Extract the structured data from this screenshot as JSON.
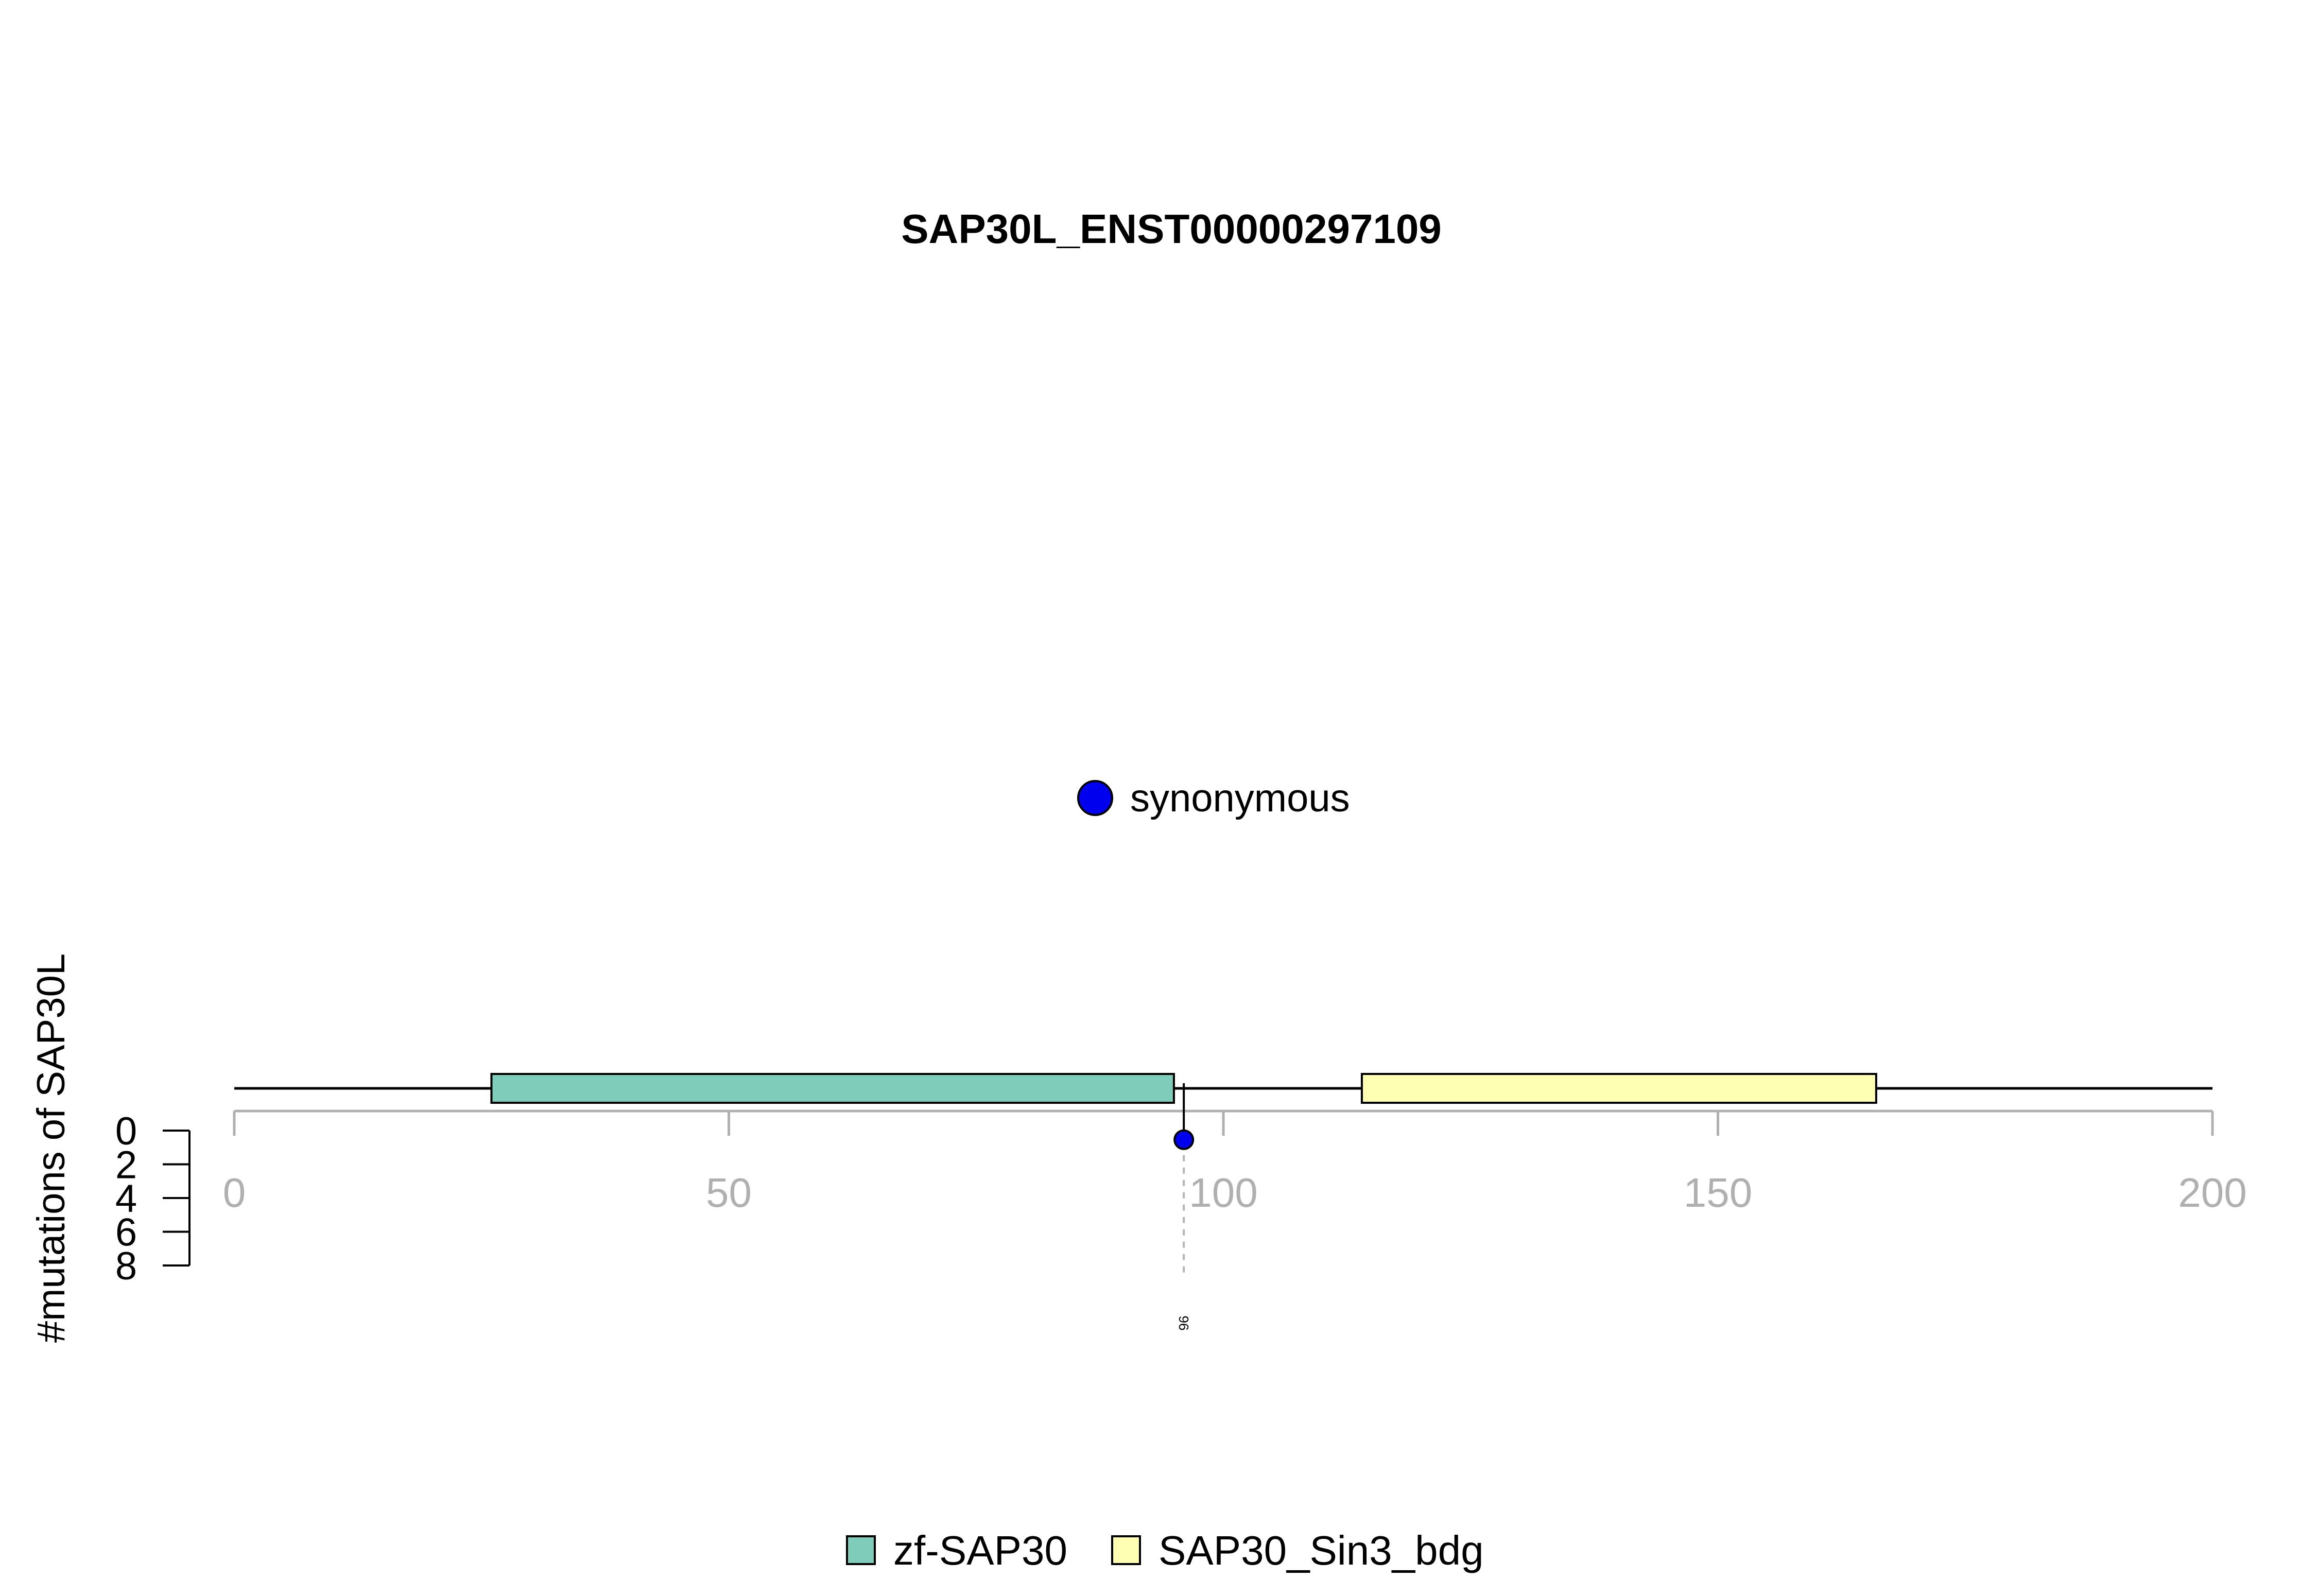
{
  "chart_data": {
    "type": "lollipop",
    "title": "SAP30L_ENST00000297109",
    "ylabel": "#mutations of SAP30L",
    "xlim": [
      0,
      200
    ],
    "x_ticks": [
      0,
      50,
      100,
      150,
      200
    ],
    "y_ticks": [
      0,
      2,
      4,
      6,
      8
    ],
    "ylim": [
      0,
      8
    ],
    "protein_length": 200,
    "domains": [
      {
        "name": "zf-SAP30",
        "start": 26,
        "end": 95,
        "color": "#7fccba"
      },
      {
        "name": "SAP30_Sin3_bdg",
        "start": 114,
        "end": 166,
        "color": "#ffffb3"
      }
    ],
    "mutations": [
      {
        "position": 96,
        "count": 1,
        "type": "synonymous",
        "label": "96"
      }
    ],
    "mutation_legend": [
      {
        "label": "synonymous",
        "color": "#0000ee"
      }
    ],
    "domain_legend": [
      {
        "label": "zf-SAP30",
        "color": "#7fccba"
      },
      {
        "label": "SAP30_Sin3_bdg",
        "color": "#ffffb3"
      }
    ]
  }
}
